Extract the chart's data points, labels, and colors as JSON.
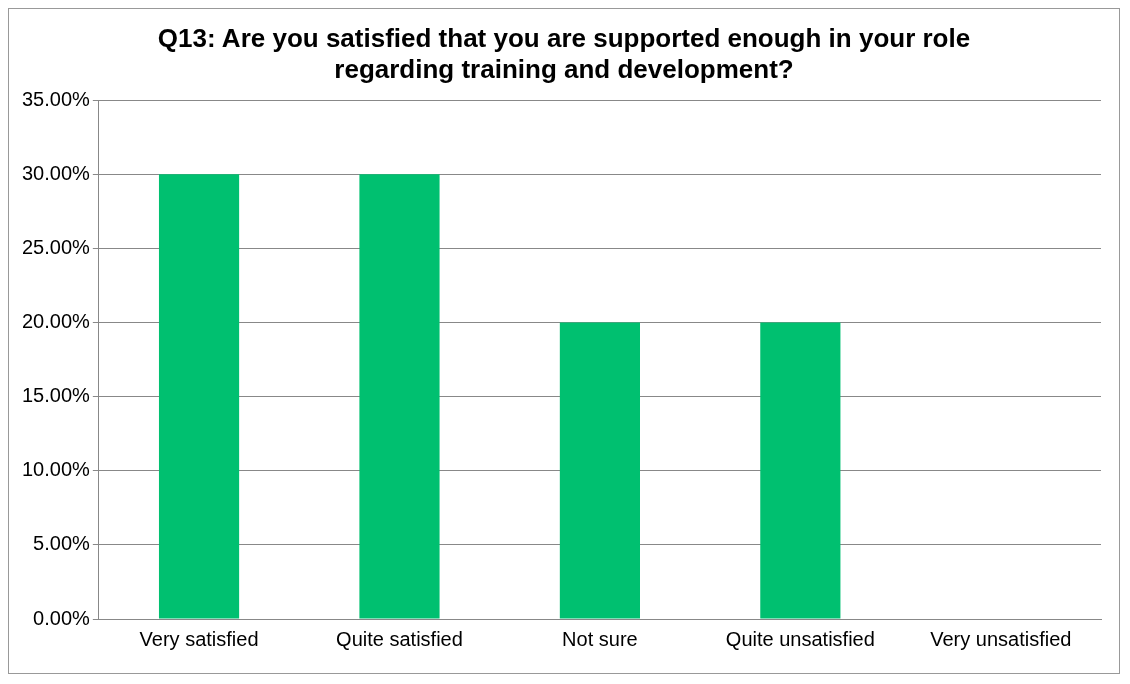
{
  "chart_data": {
    "type": "bar",
    "title": "Q13: Are you satisfied that you are supported enough in your role regarding training and development?",
    "categories": [
      "Very satisfied",
      "Quite satisfied",
      "Not sure",
      "Quite unsatisfied",
      "Very unsatisfied"
    ],
    "values": [
      30,
      30,
      20,
      20,
      0
    ],
    "color": "#00c070",
    "ylim": [
      0,
      35
    ],
    "yticks": [
      {
        "value": 0,
        "label": "0.00%"
      },
      {
        "value": 5,
        "label": "5.00%"
      },
      {
        "value": 10,
        "label": "10.00%"
      },
      {
        "value": 15,
        "label": "15.00%"
      },
      {
        "value": 20,
        "label": "20.00%"
      },
      {
        "value": 25,
        "label": "25.00%"
      },
      {
        "value": 30,
        "label": "30.00%"
      },
      {
        "value": 35,
        "label": "35.00%"
      }
    ],
    "grid": "y",
    "legend": false
  }
}
